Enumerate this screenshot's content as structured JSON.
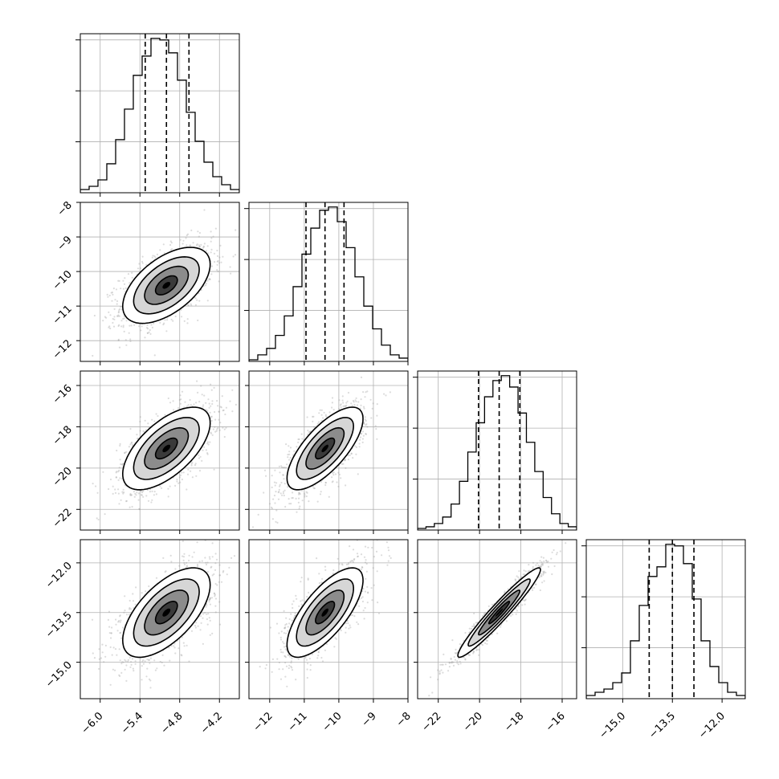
{
  "chart_data": {
    "type": "corner",
    "grid": true,
    "parameters": [
      {
        "range": [
          -6.3,
          -3.9
        ],
        "ticks": [
          -6.0,
          -5.4,
          -4.8,
          -4.2
        ],
        "tick_labels": [
          "−6.0",
          "−5.4",
          "−4.8",
          "−4.2"
        ],
        "quantiles": [
          -5.32,
          -5.0,
          -4.66
        ],
        "histogram_counts": [
          2,
          4,
          8,
          18,
          33,
          52,
          73,
          85,
          96,
          95,
          87,
          70,
          50,
          32,
          19,
          10,
          5,
          2
        ]
      },
      {
        "range": [
          -12.6,
          -8.0
        ],
        "ticks": [
          -12,
          -11,
          -10,
          -9,
          -8
        ],
        "tick_labels": [
          "−12",
          "−11",
          "−10",
          "−9",
          "−8"
        ],
        "y_tick_labels": [
          "−8",
          "−9",
          "−10",
          "−11",
          "−12"
        ],
        "quantiles": [
          -10.95,
          -10.4,
          -9.85
        ],
        "histogram_counts": [
          1,
          4,
          8,
          16,
          28,
          46,
          66,
          82,
          93,
          95,
          86,
          70,
          52,
          34,
          20,
          10,
          4,
          2
        ]
      },
      {
        "range": [
          -23.0,
          -15.3
        ],
        "ticks": [
          -22,
          -20,
          -18,
          -16
        ],
        "tick_labels": [
          "−22",
          "−20",
          "−18",
          "−16"
        ],
        "y_tick_labels": [
          "−16",
          "−18",
          "−20",
          "−22"
        ],
        "quantiles": [
          -20.05,
          -19.05,
          -18.05
        ],
        "histogram_counts": [
          1,
          2,
          4,
          8,
          16,
          30,
          48,
          66,
          82,
          92,
          95,
          88,
          72,
          54,
          36,
          20,
          10,
          4,
          2
        ]
      },
      {
        "range": [
          -16.1,
          -11.3
        ],
        "ticks": [
          -15.0,
          -13.5,
          -12.0
        ],
        "tick_labels": [
          "−15.0",
          "−13.5",
          "−12.0"
        ],
        "y_tick_labels": [
          "−12.0",
          "−13.5",
          "−15.0"
        ],
        "quantiles": [
          -14.2,
          -13.5,
          -12.85
        ],
        "histogram_counts": [
          2,
          4,
          6,
          10,
          16,
          36,
          58,
          76,
          82,
          96,
          95,
          84,
          62,
          36,
          20,
          10,
          4,
          2
        ]
      }
    ],
    "correlations": {
      "1-0": 0.55,
      "2-0": 0.62,
      "2-1": 0.72,
      "3-0": 0.62,
      "3-1": 0.72,
      "3-2": 0.96
    },
    "contour_levels_sigma": [
      0.5,
      1.0,
      1.5,
      2.0
    ]
  }
}
